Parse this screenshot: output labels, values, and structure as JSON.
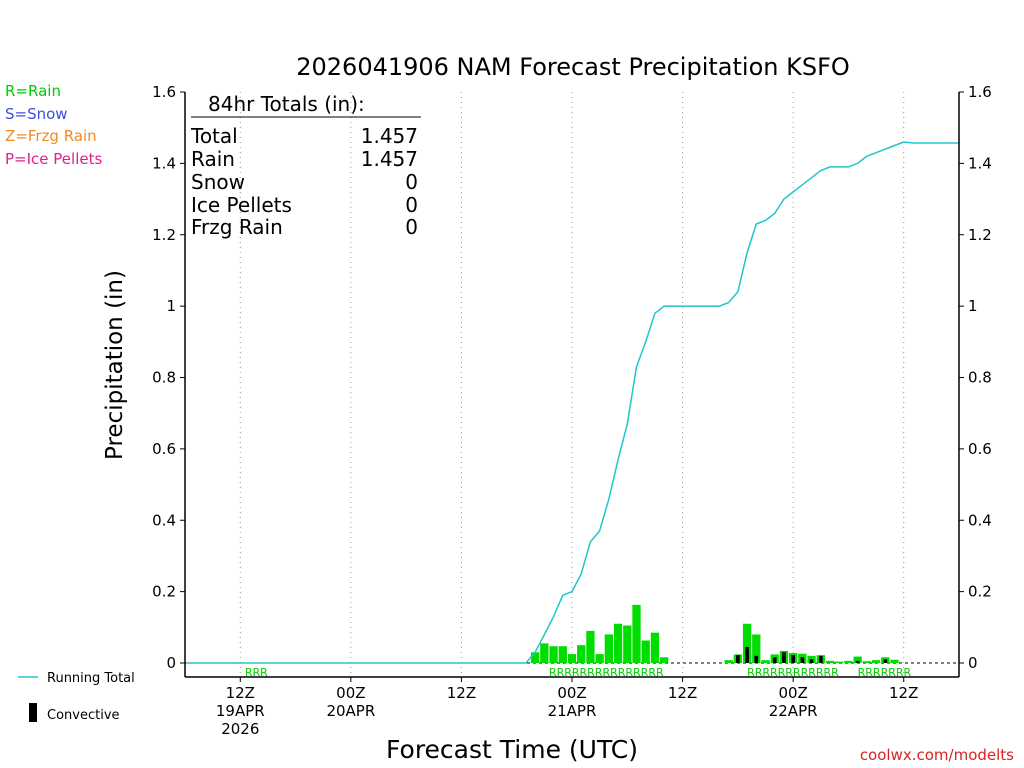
{
  "chart_data": {
    "type": "bar",
    "title": "2026041906 NAM Forecast Precipitation KSFO",
    "xlabel": "Forecast Time (UTC)",
    "ylabel": "Precipitation (in)",
    "ylim": [
      0,
      1.6
    ],
    "xlim_hours": [
      0,
      84
    ],
    "yticks": [
      0,
      0.2,
      0.4,
      0.6,
      0.8,
      1,
      1.2,
      1.4,
      1.6
    ],
    "ytick_labels": [
      "0",
      "0.2",
      "0.4",
      "0.6",
      "0.8",
      "1",
      "1.2",
      "1.4",
      "1.6"
    ],
    "xticks": [
      {
        "hour": 6,
        "line1": "12Z",
        "line2": "19APR",
        "line3": "2026"
      },
      {
        "hour": 18,
        "line1": "00Z",
        "line2": "20APR",
        "line3": ""
      },
      {
        "hour": 30,
        "line1": "12Z",
        "line2": "",
        "line3": ""
      },
      {
        "hour": 42,
        "line1": "00Z",
        "line2": "21APR",
        "line3": ""
      },
      {
        "hour": 54,
        "line1": "12Z",
        "line2": "",
        "line3": ""
      },
      {
        "hour": 66,
        "line1": "00Z",
        "line2": "22APR",
        "line3": ""
      },
      {
        "hour": 78,
        "line1": "12Z",
        "line2": "",
        "line3": ""
      }
    ],
    "legend_left": [
      {
        "label": "R=Rain",
        "color": "#00cc00"
      },
      {
        "label": "S=Snow",
        "color": "#3b50e0"
      },
      {
        "label": "Z=Frzg Rain",
        "color": "#f08a24"
      },
      {
        "label": "P=Ice Pellets",
        "color": "#e0208a"
      }
    ],
    "legend_bottom": [
      {
        "label": "Running Total",
        "color": "#1ec8c8",
        "kind": "line"
      },
      {
        "label": "Convective",
        "color": "#000000",
        "kind": "bar"
      }
    ],
    "totals_box": {
      "header": "84hr Totals (in):",
      "rows": [
        {
          "label": "Total",
          "value": "1.457"
        },
        {
          "label": "Rain",
          "value": "1.457"
        },
        {
          "label": "Snow",
          "value": "0"
        },
        {
          "label": "Ice Pellets",
          "value": "0"
        },
        {
          "label": "Frzg Rain",
          "value": "0"
        }
      ]
    },
    "ptype_strips": [
      {
        "text": "RRR",
        "start_hour": 6.5
      },
      {
        "text": "RRRRRRRRRRRRRRR",
        "start_hour": 39.5
      },
      {
        "text": "RRRRRRRRRRRR",
        "start_hour": 61
      },
      {
        "text": "RRRRRRR",
        "start_hour": 73
      }
    ],
    "series": [
      {
        "name": "Running Total",
        "color": "#1ec8c8",
        "x": [
          0,
          37,
          38,
          39,
          40,
          41,
          42,
          43,
          44,
          45,
          46,
          47,
          48,
          49,
          50,
          51,
          52,
          53,
          55,
          56,
          57,
          58,
          59,
          60,
          61,
          62,
          63,
          64,
          65,
          66,
          67,
          68,
          69,
          70,
          71,
          72,
          73,
          74,
          75,
          76,
          77,
          78,
          79,
          84
        ],
        "values": [
          0.0,
          0.0,
          0.03,
          0.08,
          0.13,
          0.19,
          0.2,
          0.25,
          0.34,
          0.37,
          0.46,
          0.57,
          0.67,
          0.83,
          0.9,
          0.98,
          1.0,
          1.0,
          1.0,
          1.0,
          1.0,
          1.0,
          1.01,
          1.04,
          1.15,
          1.23,
          1.24,
          1.26,
          1.3,
          1.32,
          1.34,
          1.36,
          1.38,
          1.39,
          1.39,
          1.39,
          1.4,
          1.42,
          1.43,
          1.44,
          1.45,
          1.46,
          1.457,
          1.457
        ]
      },
      {
        "name": "Precipitation",
        "color": "#00dd00",
        "x": [
          38,
          39,
          40,
          41,
          42,
          43,
          44,
          45,
          46,
          47,
          48,
          49,
          50,
          51,
          52,
          59,
          60,
          61,
          62,
          63,
          64,
          65,
          66,
          67,
          68,
          69,
          70,
          71,
          72,
          73,
          74,
          75,
          76,
          77
        ],
        "values": [
          0.03,
          0.055,
          0.047,
          0.047,
          0.025,
          0.05,
          0.09,
          0.025,
          0.08,
          0.11,
          0.105,
          0.163,
          0.063,
          0.085,
          0.016,
          0.008,
          0.024,
          0.11,
          0.08,
          0.008,
          0.024,
          0.034,
          0.028,
          0.026,
          0.02,
          0.022,
          0.006,
          0.004,
          0.006,
          0.018,
          0.005,
          0.008,
          0.016,
          0.009
        ]
      },
      {
        "name": "Convective",
        "color": "#000000",
        "x": [
          60,
          61,
          62,
          64,
          65,
          66,
          67,
          68,
          69,
          73,
          76
        ],
        "values": [
          0.022,
          0.045,
          0.02,
          0.016,
          0.03,
          0.022,
          0.016,
          0.01,
          0.02,
          0.006,
          0.01
        ]
      }
    ],
    "credit": "coolwx.com/modelts"
  }
}
